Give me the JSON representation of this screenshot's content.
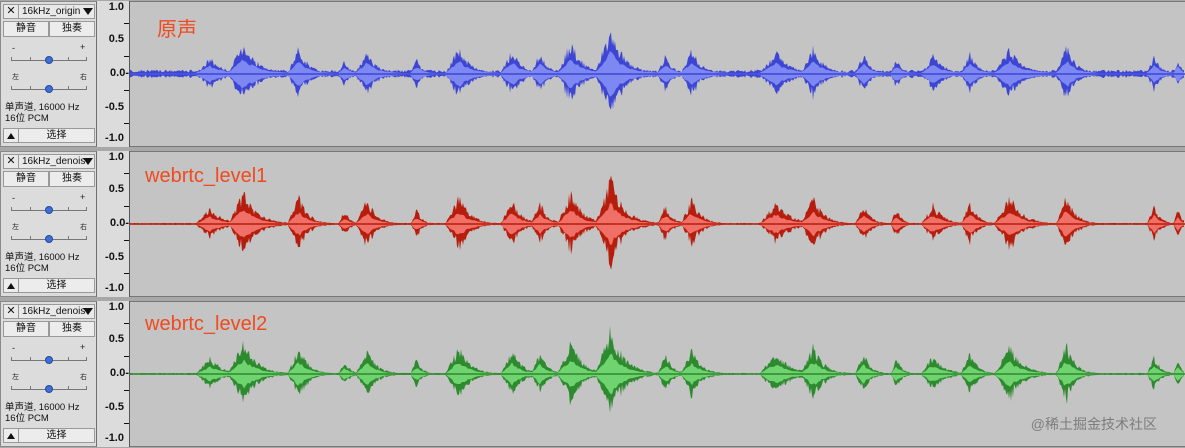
{
  "ruler_labels": [
    "1.0",
    "0.5",
    "0.0-",
    "-0.5",
    "-1.0"
  ],
  "tracks": [
    {
      "name": "16kHz_origin",
      "title": "原声",
      "mute_label": "静音",
      "solo_label": "独奏",
      "gain_minus": "-",
      "gain_plus": "+",
      "pan_left": "左",
      "pan_right": "右",
      "info_line1": "单声道, 16000 Hz",
      "info_line2": "16位 PCM",
      "select_label": "选择",
      "colors": {
        "dark": "#3d45d4",
        "light": "#7e88f2"
      }
    },
    {
      "name": "16kHz_denois",
      "title": "webrtc_level1",
      "mute_label": "静音",
      "solo_label": "独奏",
      "gain_minus": "-",
      "gain_plus": "+",
      "pan_left": "左",
      "pan_right": "右",
      "info_line1": "单声道, 16000 Hz",
      "info_line2": "16位 PCM",
      "select_label": "选择",
      "colors": {
        "dark": "#b71d0c",
        "light": "#f06f66"
      }
    },
    {
      "name": "16kHz_denois",
      "title": "webrtc_level2",
      "mute_label": "静音",
      "solo_label": "独奏",
      "gain_minus": "-",
      "gain_plus": "+",
      "pan_left": "左",
      "pan_right": "右",
      "info_line1": "单声道, 16000 Hz",
      "info_line2": "16位 PCM",
      "select_label": "选择",
      "colors": {
        "dark": "#2e8a2e",
        "light": "#6fd46f"
      }
    }
  ],
  "watermark": "@稀土掘金技术社区"
}
